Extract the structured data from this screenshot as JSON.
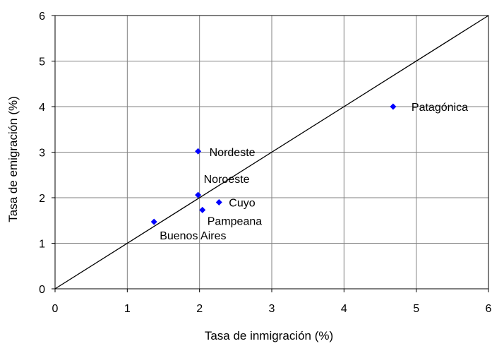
{
  "chart_data": {
    "type": "scatter",
    "title": "",
    "xlabel": "Tasa de inmigración (%)",
    "ylabel": "Tasa de emigración (%)",
    "xlim": [
      0,
      6
    ],
    "ylim": [
      0,
      6
    ],
    "xticks": [
      "0",
      "1",
      "2",
      "3",
      "4",
      "5",
      "6"
    ],
    "yticks": [
      "0",
      "1",
      "2",
      "3",
      "4",
      "5",
      "6"
    ],
    "grid": true,
    "legend": "none",
    "marker_color": "#0000FF",
    "reference_line": {
      "from": [
        0,
        0
      ],
      "to": [
        6,
        6
      ]
    },
    "points": [
      {
        "label": "Patagónica",
        "x": 4.68,
        "y": 4.0
      },
      {
        "label": "Nordeste",
        "x": 1.98,
        "y": 3.02
      },
      {
        "label": "Noroeste",
        "x": 1.98,
        "y": 2.06
      },
      {
        "label": "Cuyo",
        "x": 2.27,
        "y": 1.9
      },
      {
        "label": "Pampeana",
        "x": 2.04,
        "y": 1.73
      },
      {
        "label": "Buenos Aires",
        "x": 1.37,
        "y": 1.47
      }
    ]
  }
}
